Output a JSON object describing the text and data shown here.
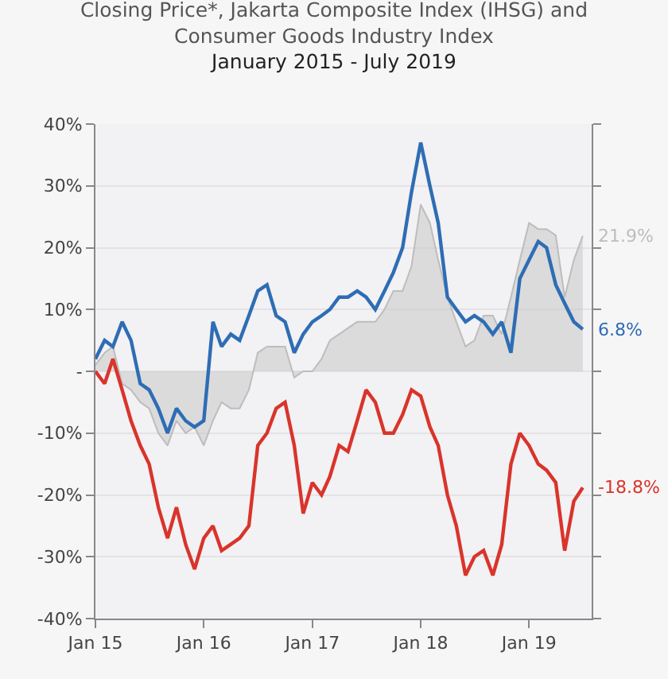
{
  "chart_data": {
    "type": "line",
    "title": "Closing Price*, Jakarta Composite Index (IHSG) and\nConsumer Goods Industry Index",
    "subtitle": "January 2015 - July 2019",
    "x": [
      "2015-01",
      "2015-02",
      "2015-03",
      "2015-04",
      "2015-05",
      "2015-06",
      "2015-07",
      "2015-08",
      "2015-09",
      "2015-10",
      "2015-11",
      "2015-12",
      "2016-01",
      "2016-02",
      "2016-03",
      "2016-04",
      "2016-05",
      "2016-06",
      "2016-07",
      "2016-08",
      "2016-09",
      "2016-10",
      "2016-11",
      "2016-12",
      "2017-01",
      "2017-02",
      "2017-03",
      "2017-04",
      "2017-05",
      "2017-06",
      "2017-07",
      "2017-08",
      "2017-09",
      "2017-10",
      "2017-11",
      "2017-12",
      "2018-01",
      "2018-02",
      "2018-03",
      "2018-04",
      "2018-05",
      "2018-06",
      "2018-07",
      "2018-08",
      "2018-09",
      "2018-10",
      "2018-11",
      "2018-12",
      "2019-01",
      "2019-02",
      "2019-03",
      "2019-04",
      "2019-05",
      "2019-06",
      "2019-07"
    ],
    "series": [
      {
        "type": "area",
        "color": "#bdbdbd",
        "values": [
          1,
          3,
          4,
          -2,
          -3,
          -5,
          -6,
          -10,
          -12,
          -8,
          -10,
          -9,
          -12,
          -8,
          -5,
          -6,
          -6,
          -3,
          3,
          4,
          4,
          4,
          -1,
          0,
          0,
          2,
          5,
          6,
          7,
          8,
          8,
          8,
          10,
          13,
          13,
          17,
          27,
          24,
          18,
          12,
          8,
          4,
          5,
          9,
          9,
          6,
          12,
          18,
          24,
          23,
          23,
          22,
          12,
          18,
          21.9
        ]
      },
      {
        "color": "#2e6db4",
        "values": [
          2,
          5,
          4,
          8,
          5,
          -2,
          -3,
          -6,
          -10,
          -6,
          -8,
          -9,
          -8,
          8,
          4,
          6,
          5,
          9,
          13,
          14,
          9,
          8,
          3,
          6,
          8,
          9,
          10,
          12,
          12,
          13,
          12,
          10,
          13,
          16,
          20,
          29,
          37,
          30,
          24,
          12,
          10,
          8,
          9,
          8,
          6,
          8,
          3,
          15,
          18,
          21,
          20,
          14,
          11,
          8,
          6.8
        ]
      },
      {
        "color": "#d9342b",
        "values": [
          0,
          -2,
          2,
          -3,
          -8,
          -12,
          -15,
          -22,
          -27,
          -22,
          -28,
          -32,
          -27,
          -25,
          -29,
          -28,
          -27,
          -25,
          -12,
          -10,
          -6,
          -5,
          -12,
          -23,
          -18,
          -20,
          -17,
          -12,
          -13,
          -8,
          -3,
          -5,
          -10,
          -10,
          -7,
          -3,
          -4,
          -9,
          -12,
          -20,
          -25,
          -33,
          -30,
          -29,
          -33,
          -28,
          -15,
          -10,
          -12,
          -15,
          -16,
          -18,
          -29,
          -21,
          -18.8
        ]
      }
    ],
    "annotations": [
      {
        "text": "21.9%",
        "x": "2019-07",
        "y": 21.9
      },
      {
        "text": "6.8%",
        "x": "2019-07",
        "y": 6.8
      },
      {
        "text": "-18.8%",
        "x": "2019-07",
        "y": -18.8
      }
    ],
    "xlim": [
      "2015-01-01",
      "2019-07-31"
    ],
    "xticks": [
      {
        "value": "2015-01",
        "label": "Jan 15"
      },
      {
        "value": "2016-01",
        "label": "Jan 16"
      },
      {
        "value": "2017-01",
        "label": "Jan 17"
      },
      {
        "value": "2018-01",
        "label": "Jan 18"
      },
      {
        "value": "2019-01",
        "label": "Jan 19"
      }
    ],
    "ylim": [
      -40,
      40
    ],
    "yticks": [
      {
        "value": -40,
        "label": "-40%"
      },
      {
        "value": -30,
        "label": "-30%"
      },
      {
        "value": -20,
        "label": "-20%"
      },
      {
        "value": -10,
        "label": "-10%"
      },
      {
        "value": 0,
        "label": "-"
      },
      {
        "value": 10,
        "label": "10%"
      },
      {
        "value": 20,
        "label": "20%"
      },
      {
        "value": 30,
        "label": "30%"
      },
      {
        "value": 40,
        "label": "40%"
      }
    ],
    "grid": "y",
    "marker": "none",
    "line_style": "solid"
  }
}
